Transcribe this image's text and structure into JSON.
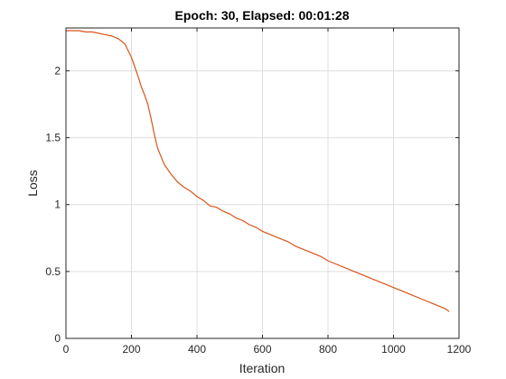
{
  "chart_data": {
    "type": "line",
    "title": "Epoch: 30, Elapsed: 00:01:28",
    "xlabel": "Iteration",
    "ylabel": "Loss",
    "xlim": [
      0,
      1200
    ],
    "ylim": [
      0,
      2.32
    ],
    "x_ticks": [
      0,
      200,
      400,
      600,
      800,
      1000,
      1200
    ],
    "x_tick_labels": [
      "0",
      "200",
      "400",
      "600",
      "800",
      "1000",
      "1200"
    ],
    "y_ticks": [
      0,
      0.5,
      1,
      1.5,
      2
    ],
    "y_tick_labels": [
      "0",
      "0.5",
      "1",
      "1.5",
      "2"
    ],
    "grid": true,
    "legend": "none",
    "series": [
      {
        "color": "#d95319",
        "x": [
          1,
          20,
          40,
          60,
          80,
          100,
          120,
          140,
          160,
          180,
          200,
          210,
          220,
          230,
          240,
          250,
          260,
          270,
          280,
          290,
          300,
          320,
          340,
          360,
          380,
          400,
          420,
          440,
          460,
          480,
          500,
          520,
          540,
          560,
          580,
          600,
          620,
          640,
          660,
          680,
          700,
          720,
          740,
          760,
          780,
          800,
          820,
          840,
          860,
          880,
          900,
          920,
          940,
          960,
          980,
          1000,
          1020,
          1040,
          1060,
          1080,
          1100,
          1120,
          1140,
          1160,
          1170
        ],
        "y": [
          2.3,
          2.3,
          2.3,
          2.29,
          2.29,
          2.28,
          2.27,
          2.26,
          2.24,
          2.2,
          2.1,
          2.03,
          1.96,
          1.88,
          1.82,
          1.75,
          1.64,
          1.52,
          1.42,
          1.36,
          1.3,
          1.23,
          1.17,
          1.13,
          1.1,
          1.06,
          1.03,
          0.99,
          0.98,
          0.95,
          0.93,
          0.9,
          0.88,
          0.85,
          0.83,
          0.8,
          0.78,
          0.76,
          0.74,
          0.72,
          0.69,
          0.67,
          0.65,
          0.63,
          0.61,
          0.58,
          0.56,
          0.54,
          0.52,
          0.5,
          0.48,
          0.46,
          0.44,
          0.42,
          0.4,
          0.38,
          0.36,
          0.34,
          0.32,
          0.3,
          0.28,
          0.26,
          0.24,
          0.22,
          0.2
        ]
      }
    ]
  }
}
